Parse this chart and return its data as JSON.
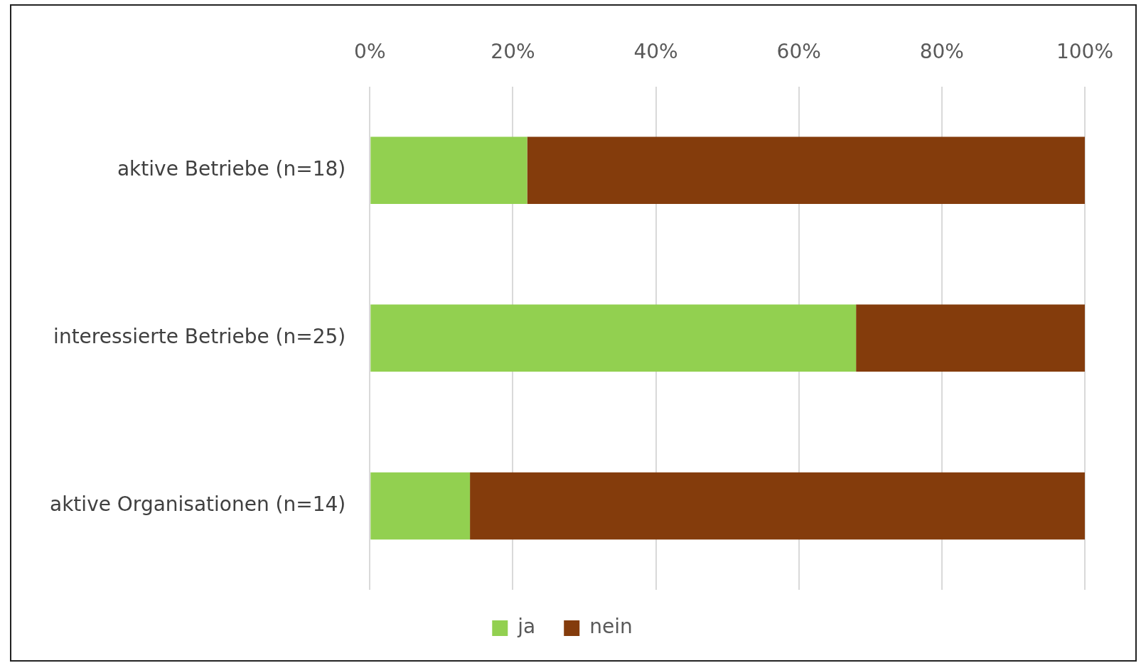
{
  "chart_data": {
    "type": "bar",
    "orientation": "horizontal",
    "stacked": true,
    "categories": [
      "aktive Betriebe (n=18)",
      "interessierte Betriebe (n=25)",
      "aktive Organisationen (n=14)"
    ],
    "series": [
      {
        "name": "ja",
        "color": "#92d050",
        "values": [
          22,
          68,
          14
        ]
      },
      {
        "name": "nein",
        "color": "#843c0c",
        "values": [
          78,
          32,
          86
        ]
      }
    ],
    "xlim": [
      0,
      100
    ],
    "xticks": [
      {
        "value": 0,
        "label": "0%"
      },
      {
        "value": 20,
        "label": "20%"
      },
      {
        "value": 40,
        "label": "40%"
      },
      {
        "value": 60,
        "label": "60%"
      },
      {
        "value": 80,
        "label": "80%"
      },
      {
        "value": 100,
        "label": "100%"
      }
    ],
    "grid": "x",
    "legend": "bottom"
  }
}
